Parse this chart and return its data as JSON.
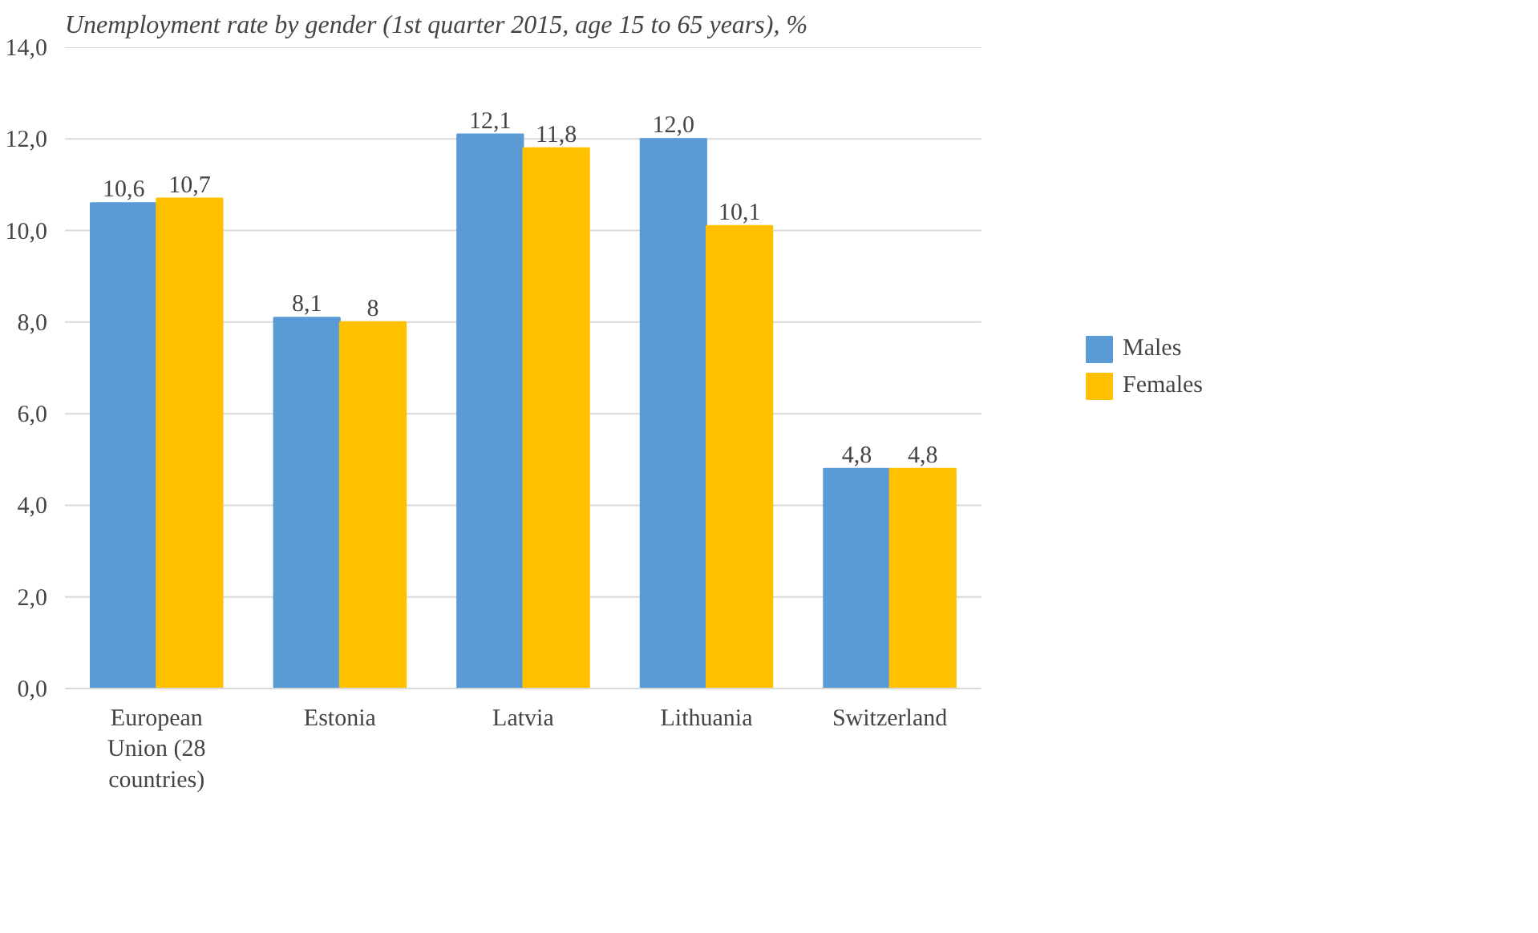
{
  "chart_data": {
    "type": "bar",
    "title": "Unemployment rate by gender (1st quarter 2015, age 15 to 65 years), %",
    "categories": [
      "European Union (28 countries)",
      "Estonia",
      "Latvia",
      "Lithuania",
      "Switzerland"
    ],
    "series": [
      {
        "name": "Males",
        "color": "#5b9bd5",
        "values": [
          10.6,
          8.1,
          12.1,
          12.0,
          4.8
        ],
        "value_labels": [
          "10,6",
          "8,1",
          "12,1",
          "12,0",
          "4,8"
        ]
      },
      {
        "name": "Females",
        "color": "#ffc000",
        "values": [
          10.7,
          8,
          11.8,
          10.1,
          4.8
        ],
        "value_labels": [
          "10,7",
          "8",
          "11,8",
          "10,1",
          "4,8"
        ]
      }
    ],
    "ylim": [
      0,
      14
    ],
    "yticks": [
      {
        "value": 0,
        "label": "0,0"
      },
      {
        "value": 2,
        "label": "2,0"
      },
      {
        "value": 4,
        "label": "4,0"
      },
      {
        "value": 6,
        "label": "6,0"
      },
      {
        "value": 8,
        "label": "8,0"
      },
      {
        "value": 10,
        "label": "10,0"
      },
      {
        "value": 12,
        "label": "12,0"
      },
      {
        "value": 14,
        "label": "14,0"
      }
    ],
    "grid": "y",
    "legend": "right"
  }
}
